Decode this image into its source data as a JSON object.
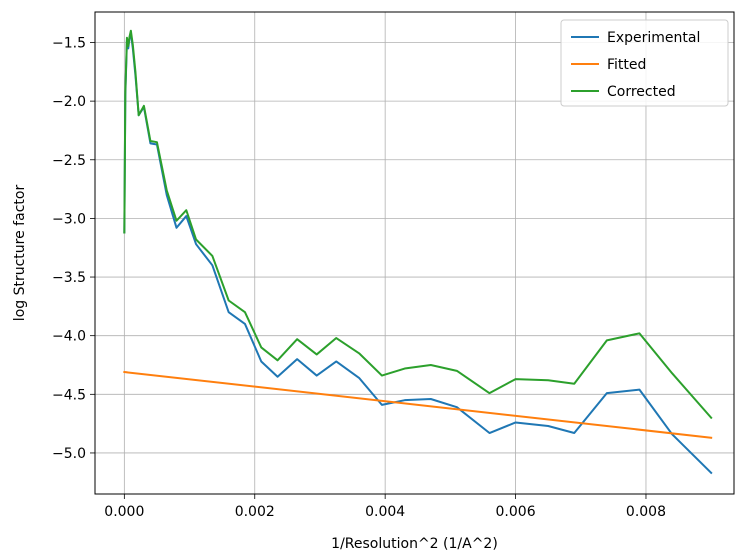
{
  "chart_data": {
    "type": "line",
    "title": "",
    "xlabel": "1/Resolution^2 (1/A^2)",
    "ylabel": "log Structure factor",
    "xlim": [
      -0.00045,
      0.00935
    ],
    "ylim": [
      -5.35,
      -1.24
    ],
    "grid": true,
    "legend_position": "upper-right",
    "x_ticks": [
      0.0,
      0.002,
      0.004,
      0.006,
      0.008
    ],
    "x_tick_labels": [
      "0.000",
      "0.002",
      "0.004",
      "0.006",
      "0.008"
    ],
    "y_ticks": [
      -1.5,
      -2.0,
      -2.5,
      -3.0,
      -3.5,
      -4.0,
      -4.5,
      -5.0
    ],
    "y_tick_labels": [
      "−1.5",
      "−2.0",
      "−2.5",
      "−3.0",
      "−3.5",
      "−4.0",
      "−4.5",
      "−5.0"
    ],
    "series": [
      {
        "name": "Experimental",
        "color": "#1f77b4",
        "x": [
          0.0,
          1.5e-05,
          4e-05,
          6e-05,
          8e-05,
          0.0001,
          0.00013,
          0.00017,
          0.00022,
          0.0003,
          0.0004,
          0.0005,
          0.00065,
          0.0008,
          0.00095,
          0.0011,
          0.00135,
          0.0016,
          0.00185,
          0.0021,
          0.00235,
          0.00265,
          0.00295,
          0.00325,
          0.0036,
          0.00395,
          0.0043,
          0.0047,
          0.0051,
          0.0056,
          0.006,
          0.0065,
          0.0069,
          0.0074,
          0.0079,
          0.0084,
          0.009
        ],
        "values": [
          -3.12,
          -1.95,
          -1.48,
          -1.55,
          -1.46,
          -1.42,
          -1.55,
          -1.78,
          -2.12,
          -2.05,
          -2.36,
          -2.37,
          -2.8,
          -3.08,
          -2.98,
          -3.22,
          -3.4,
          -3.8,
          -3.9,
          -4.22,
          -4.35,
          -4.2,
          -4.34,
          -4.22,
          -4.36,
          -4.59,
          -4.55,
          -4.54,
          -4.61,
          -4.83,
          -4.74,
          -4.77,
          -4.83,
          -4.49,
          -4.46,
          -4.84,
          -5.17
        ]
      },
      {
        "name": "Fitted",
        "color": "#ff7f0e",
        "x": [
          0.0,
          0.009
        ],
        "values": [
          -4.31,
          -4.87
        ]
      },
      {
        "name": "Corrected",
        "color": "#2ca02c",
        "x": [
          0.0,
          1.5e-05,
          4e-05,
          6e-05,
          8e-05,
          0.0001,
          0.00013,
          0.00017,
          0.00022,
          0.0003,
          0.0004,
          0.0005,
          0.00065,
          0.0008,
          0.00095,
          0.0011,
          0.00135,
          0.0016,
          0.00185,
          0.0021,
          0.00235,
          0.00265,
          0.00295,
          0.00325,
          0.0036,
          0.00395,
          0.0043,
          0.0047,
          0.0051,
          0.0056,
          0.006,
          0.0065,
          0.0069,
          0.0074,
          0.0079,
          0.0084,
          0.009
        ],
        "values": [
          -3.12,
          -1.92,
          -1.46,
          -1.53,
          -1.45,
          -1.4,
          -1.52,
          -1.75,
          -2.12,
          -2.04,
          -2.34,
          -2.35,
          -2.76,
          -3.02,
          -2.93,
          -3.18,
          -3.32,
          -3.7,
          -3.8,
          -4.1,
          -4.21,
          -4.03,
          -4.16,
          -4.02,
          -4.15,
          -4.34,
          -4.28,
          -4.25,
          -4.3,
          -4.49,
          -4.37,
          -4.38,
          -4.41,
          -4.04,
          -3.98,
          -4.32,
          -4.7
        ]
      }
    ]
  }
}
